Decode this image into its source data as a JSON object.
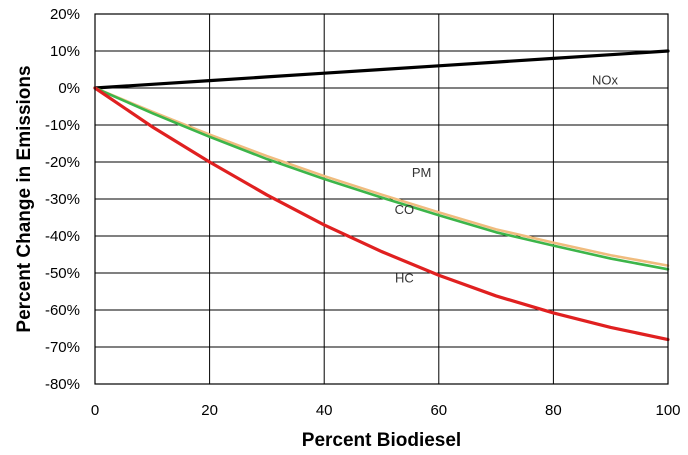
{
  "chart_data": {
    "type": "line",
    "xlabel": "Percent Biodiesel",
    "ylabel": "Percent Change in Emissions",
    "xlim": [
      0,
      100
    ],
    "ylim": [
      -80,
      20
    ],
    "x_ticks": [
      0,
      20,
      40,
      60,
      80,
      100
    ],
    "x_tick_labels": [
      "0",
      "20",
      "40",
      "60",
      "80",
      "100"
    ],
    "y_ticks": [
      20,
      10,
      0,
      -10,
      -20,
      -30,
      -40,
      -50,
      -60,
      -70,
      -80
    ],
    "y_tick_labels": [
      "20%",
      "10%",
      "0%",
      "-10%",
      "-20%",
      "-30%",
      "-40%",
      "-50%",
      "-60%",
      "-70%",
      "-80%"
    ],
    "grid": true,
    "legend": "none",
    "x": [
      0,
      10,
      20,
      30,
      40,
      50,
      60,
      70,
      80,
      90,
      100
    ],
    "series": [
      {
        "name": "NOx",
        "color": "#000000",
        "values": [
          0,
          1,
          2,
          3,
          4,
          5,
          6,
          7,
          8,
          9,
          10
        ]
      },
      {
        "name": "PM",
        "color": "#f0bc7e",
        "values": [
          0,
          -6.4,
          -12.6,
          -18.4,
          -23.8,
          -28.8,
          -33.6,
          -38.2,
          -41.8,
          -45.2,
          -48
        ]
      },
      {
        "name": "CO",
        "color": "#3db54a",
        "values": [
          0,
          -6.8,
          -13.2,
          -19.2,
          -24.6,
          -29.6,
          -34.4,
          -39,
          -42.6,
          -46.1,
          -49
        ]
      },
      {
        "name": "HC",
        "color": "#e02020",
        "values": [
          0,
          -10.5,
          -20,
          -28.9,
          -37,
          -44.2,
          -50.6,
          -56.2,
          -60.8,
          -64.7,
          -68
        ]
      }
    ],
    "annotations": [
      {
        "text": "NOx",
        "series": "NOx",
        "x": 89,
        "y": 2
      },
      {
        "text": "PM",
        "series": "PM",
        "x": 57,
        "y": -23
      },
      {
        "text": "CO",
        "series": "CO",
        "x": 54,
        "y": -33
      },
      {
        "text": "HC",
        "series": "HC",
        "x": 54,
        "y": -51.5
      }
    ]
  }
}
